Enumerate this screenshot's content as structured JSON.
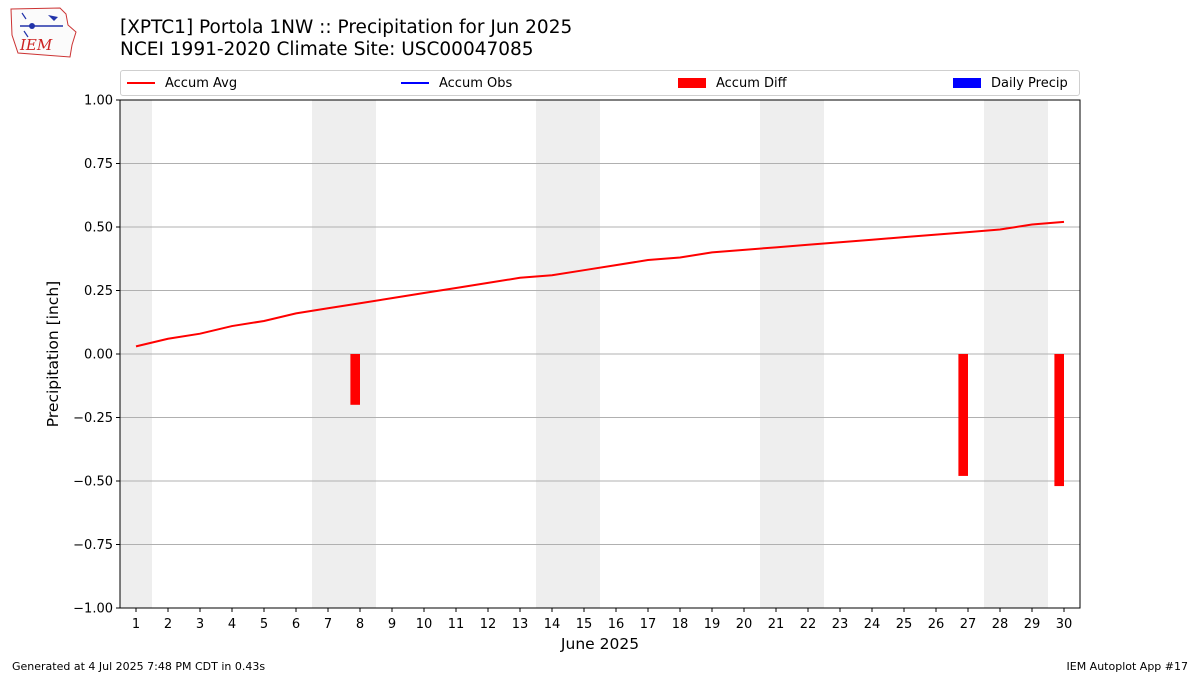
{
  "header": {
    "title_line1": "[XPTC1] Portola 1NW :: Precipitation for Jun 2025",
    "title_line2": "NCEI 1991-2020 Climate Site: USC00047085",
    "logo_text": "IEM"
  },
  "legend": [
    {
      "label": "Accum Avg",
      "kind": "line",
      "color": "#ff0000"
    },
    {
      "label": "Accum Obs",
      "kind": "line",
      "color": "#0000ff"
    },
    {
      "label": "Accum Diff",
      "kind": "box",
      "color": "#ff0000"
    },
    {
      "label": "Daily Precip",
      "kind": "box",
      "color": "#0000ff"
    }
  ],
  "footer": {
    "left": "Generated at 4 Jul 2025 7:48 PM CDT in 0.43s",
    "right": "IEM Autoplot App #17"
  },
  "chart_data": {
    "type": "line",
    "xlabel": "June 2025",
    "ylabel": "Precipitation [inch]",
    "ylim": [
      -1.0,
      1.0
    ],
    "yticks": [
      "−1.00",
      "−0.75",
      "−0.50",
      "−0.25",
      "0.00",
      "0.25",
      "0.50",
      "0.75",
      "1.00"
    ],
    "ytick_values": [
      -1.0,
      -0.75,
      -0.5,
      -0.25,
      0.0,
      0.25,
      0.5,
      0.75,
      1.0
    ],
    "x": [
      1,
      2,
      3,
      4,
      5,
      6,
      7,
      8,
      9,
      10,
      11,
      12,
      13,
      14,
      15,
      16,
      17,
      18,
      19,
      20,
      21,
      22,
      23,
      24,
      25,
      26,
      27,
      28,
      29,
      30
    ],
    "xticks": [
      "1",
      "2",
      "3",
      "4",
      "5",
      "6",
      "7",
      "8",
      "9",
      "10",
      "11",
      "12",
      "13",
      "14",
      "15",
      "16",
      "17",
      "18",
      "19",
      "20",
      "21",
      "22",
      "23",
      "24",
      "25",
      "26",
      "27",
      "28",
      "29",
      "30"
    ],
    "grid": "horizontal",
    "weekend_shading": [
      [
        1,
        1
      ],
      [
        7,
        8
      ],
      [
        14,
        15
      ],
      [
        21,
        22
      ],
      [
        28,
        29
      ]
    ],
    "series": [
      {
        "name": "Accum Avg",
        "type": "line",
        "color": "#ff0000",
        "values": [
          0.03,
          0.06,
          0.08,
          0.11,
          0.13,
          0.16,
          0.18,
          0.2,
          0.22,
          0.24,
          0.26,
          0.28,
          0.3,
          0.31,
          0.33,
          0.35,
          0.37,
          0.38,
          0.4,
          0.41,
          0.42,
          0.43,
          0.44,
          0.45,
          0.46,
          0.47,
          0.48,
          0.49,
          0.51,
          0.52
        ]
      },
      {
        "name": "Accum Diff",
        "type": "bar",
        "color": "#ff0000",
        "points": [
          {
            "x": 8,
            "value": -0.2
          },
          {
            "x": 27,
            "value": -0.48
          },
          {
            "x": 30,
            "value": -0.52
          }
        ]
      }
    ]
  }
}
